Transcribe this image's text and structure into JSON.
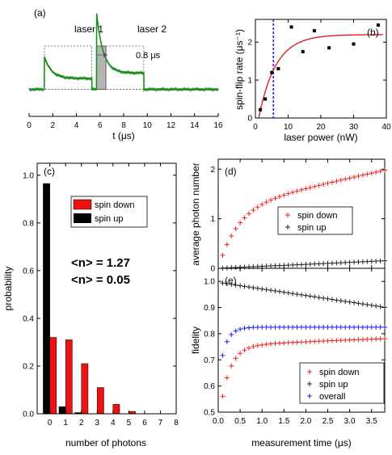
{
  "chart_data": [
    {
      "id": "a",
      "type": "line",
      "panel_label": "(a)",
      "xlabel": "t (μs)",
      "xlim": [
        0,
        16
      ],
      "ylim": [
        0,
        1
      ],
      "x_ticks": [
        0,
        2,
        4,
        6,
        8,
        10,
        12,
        14,
        16
      ],
      "annotations": {
        "laser1": "laser 1",
        "laser2": "laser 2",
        "window": "0.8 μs"
      },
      "laser_pulses": [
        {
          "start": 1.3,
          "end": 5.3
        },
        {
          "start": 5.7,
          "end": 9.7
        }
      ],
      "window": [
        5.7,
        6.5
      ],
      "trace": {
        "baseline": 0.12,
        "pulses": [
          {
            "start": 1.3,
            "end": 5.3,
            "peak": 0.48,
            "steady": 0.24,
            "tau": 0.6
          },
          {
            "start": 5.7,
            "end": 9.7,
            "peak": 0.98,
            "steady": 0.3,
            "tau": 0.55
          }
        ],
        "end": 16
      },
      "colors": {
        "trace": "#1e8c1e",
        "pulse_outline": "#555555",
        "window": "#b5b5b5"
      }
    },
    {
      "id": "b",
      "type": "scatter",
      "panel_label": "(b)",
      "xlabel": "laser power (nW)",
      "ylabel": "spin-flip rate (μs⁻¹)",
      "xlim": [
        0,
        40
      ],
      "ylim": [
        0,
        2.6
      ],
      "x_ticks": [
        0,
        10,
        20,
        30,
        40
      ],
      "y_ticks": [
        0,
        1,
        2
      ],
      "points": [
        {
          "x": 1.5,
          "y": 0.22
        },
        {
          "x": 3.0,
          "y": 0.5
        },
        {
          "x": 5.0,
          "y": 1.2
        },
        {
          "x": 7.0,
          "y": 1.3
        },
        {
          "x": 11.0,
          "y": 2.4
        },
        {
          "x": 14.5,
          "y": 1.75
        },
        {
          "x": 18.0,
          "y": 2.3
        },
        {
          "x": 22.5,
          "y": 1.85
        },
        {
          "x": 30.0,
          "y": 1.95
        },
        {
          "x": 37.5,
          "y": 2.45
        }
      ],
      "fit": {
        "A": 2.2,
        "k": 0.19,
        "x0": 1.0
      },
      "vline": 5.5,
      "colors": {
        "fit": "#e02020",
        "vline": "#2020e0",
        "points": "#000000"
      }
    },
    {
      "id": "c",
      "type": "bar",
      "panel_label": "(c)",
      "xlabel": "number of photons",
      "ylabel": "probability",
      "xlim": [
        -0.8,
        8
      ],
      "ylim": [
        0,
        1.05
      ],
      "x_ticks": [
        0,
        1,
        2,
        3,
        4,
        5,
        6,
        7,
        8
      ],
      "y_ticks": [
        0.0,
        0.2,
        0.4,
        0.6,
        0.8,
        1.0
      ],
      "categories": [
        0,
        1,
        2,
        3,
        4,
        5,
        6,
        7,
        8
      ],
      "series": [
        {
          "name": "spin down",
          "color": "#ee1111",
          "values": [
            0.32,
            0.31,
            0.21,
            0.11,
            0.04,
            0.01,
            0,
            0,
            0
          ]
        },
        {
          "name": "spin up",
          "color": "#000000",
          "values": [
            0.965,
            0.03,
            0.005,
            0,
            0,
            0,
            0,
            0,
            0
          ]
        }
      ],
      "annotations": {
        "mean_down": "<n> = 1.27",
        "mean_up": "<n> = 0.05"
      },
      "legend": "top-right"
    },
    {
      "id": "d",
      "type": "scatter",
      "panel_label": "(d)",
      "ylabel": "average photon number",
      "xlim": [
        0,
        3.8
      ],
      "ylim": [
        0,
        2.2
      ],
      "y_ticks": [
        0,
        1,
        2
      ],
      "series": [
        {
          "name": "spin down",
          "color": "#ee2020",
          "model": {
            "A": 1.22,
            "tau": 0.45,
            "B": 0.2
          }
        },
        {
          "name": "spin up",
          "color": "#202020",
          "model": {
            "A": 0,
            "tau": 1,
            "B": 0.04
          }
        }
      ],
      "x_step": 0.1,
      "legend": "middle-right"
    },
    {
      "id": "e",
      "type": "scatter",
      "panel_label": "(e)",
      "xlabel": "measurement time (μs)",
      "ylabel": "fidelity",
      "xlim": [
        0,
        3.8
      ],
      "ylim": [
        0.5,
        1.05
      ],
      "x_ticks": [
        0.0,
        0.5,
        1.0,
        1.5,
        2.0,
        2.5,
        3.0,
        3.5
      ],
      "y_ticks": [
        0.5,
        0.6,
        0.7,
        0.8,
        0.9,
        1.0
      ],
      "series": [
        {
          "name": "spin down",
          "color": "#ee2020",
          "model": {
            "type": "down"
          }
        },
        {
          "name": "spin up",
          "color": "#202020",
          "model": {
            "type": "up"
          }
        },
        {
          "name": "overall",
          "color": "#2020ee",
          "model": {
            "type": "overall"
          }
        }
      ],
      "x_step": 0.1,
      "legend": "bottom-right"
    }
  ]
}
